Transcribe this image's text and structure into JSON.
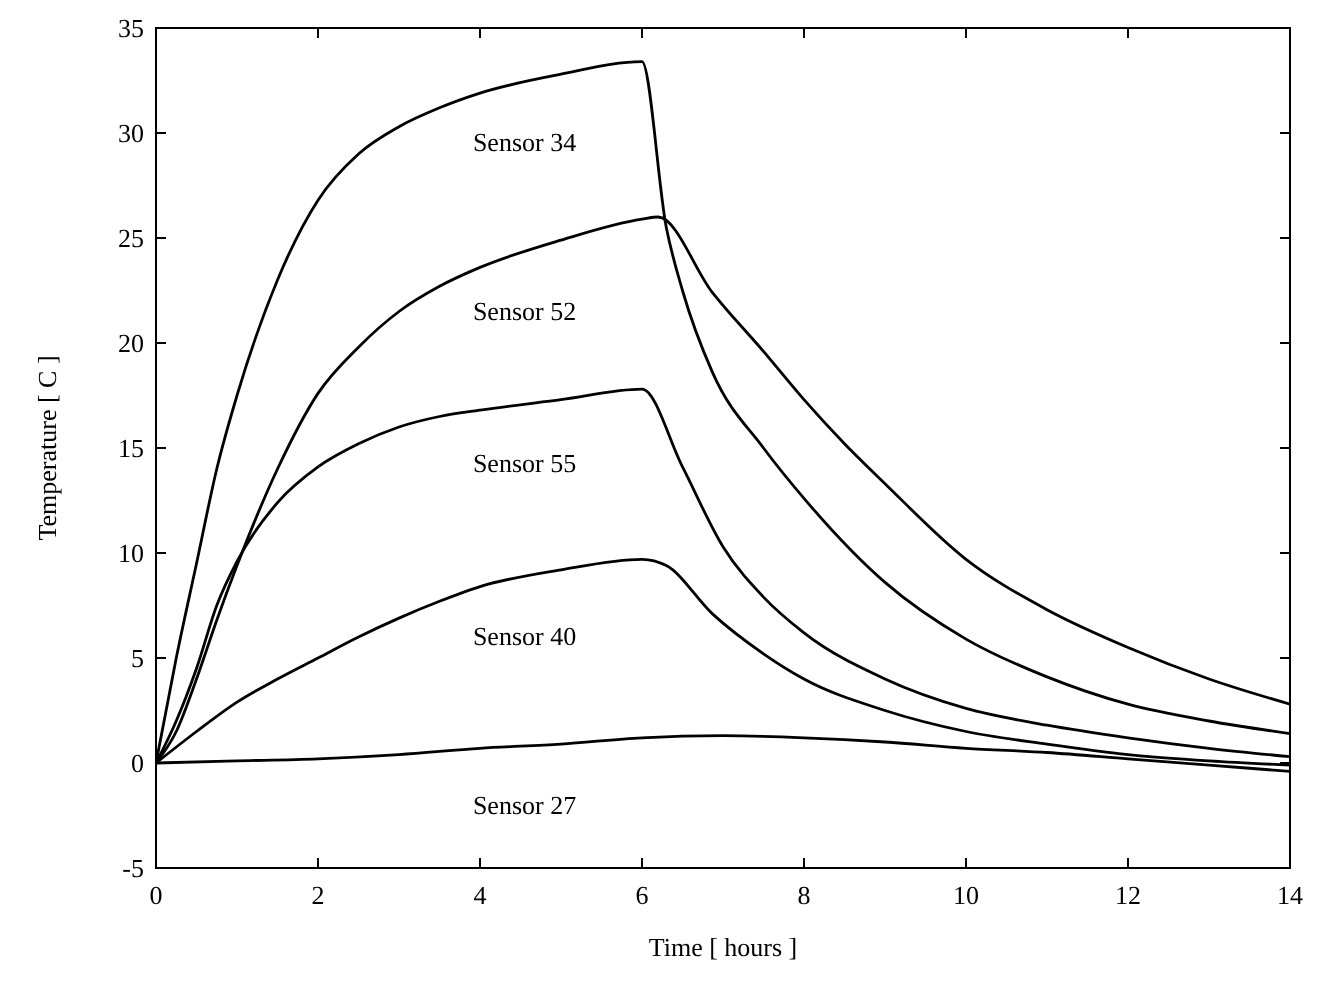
{
  "chart_data": {
    "type": "line",
    "xlabel": "Time [ hours ]",
    "ylabel": "Temperature [ C ]",
    "xlim": [
      0,
      14
    ],
    "xticks": [
      0,
      2,
      4,
      6,
      8,
      10,
      12,
      14
    ],
    "ylim": [
      -5,
      35
    ],
    "yticks": [
      -5,
      0,
      5,
      10,
      15,
      20,
      25,
      30,
      35
    ],
    "marker": "none",
    "line_style": "solid",
    "series": [
      {
        "name": "Sensor 34",
        "color": "#000000",
        "x": [
          0,
          0.25,
          0.5,
          0.75,
          1,
          1.5,
          2,
          2.5,
          3,
          3.5,
          4,
          5,
          6,
          6.3,
          6.5,
          6.87,
          7.5,
          8,
          9,
          10,
          11,
          12,
          13,
          14
        ],
        "values": [
          0,
          5,
          9.5,
          14,
          17.5,
          23,
          26.8,
          29,
          30.3,
          31.2,
          31.9,
          32.8,
          33.4,
          25.5,
          22.5,
          18.6,
          15,
          12.6,
          8.6,
          5.9,
          4.1,
          2.8,
          2,
          1.4
        ]
      },
      {
        "name": "Sensor 52",
        "color": "#000000",
        "x": [
          0,
          0.25,
          0.5,
          0.75,
          1,
          1.5,
          2,
          2.5,
          3,
          3.5,
          4,
          5,
          6,
          6.2,
          6.87,
          7.5,
          8,
          8.5,
          9,
          10,
          11,
          12,
          13,
          14
        ],
        "values": [
          0,
          1.5,
          4,
          6.8,
          9.4,
          14,
          17.6,
          19.8,
          21.5,
          22.7,
          23.6,
          24.9,
          25.9,
          26,
          22.4,
          19.6,
          17.3,
          15.2,
          13.3,
          9.7,
          7.3,
          5.5,
          4,
          2.8
        ]
      },
      {
        "name": "Sensor 55",
        "color": "#000000",
        "x": [
          0,
          0.25,
          0.5,
          0.75,
          1,
          1.5,
          2,
          2.5,
          3,
          3.5,
          4,
          5,
          6,
          6.5,
          7,
          7.5,
          8,
          9,
          10,
          11,
          12,
          13,
          14
        ],
        "values": [
          0,
          2,
          4.5,
          7.5,
          9.6,
          12.4,
          14.1,
          15.2,
          16,
          16.5,
          16.8,
          17.3,
          17.8,
          14.1,
          10.3,
          7.9,
          6.2,
          4,
          2.6,
          1.8,
          1.2,
          0.7,
          0.3
        ]
      },
      {
        "name": "Sensor 40",
        "color": "#000000",
        "x": [
          0,
          0.5,
          1,
          1.5,
          2,
          2.5,
          3,
          3.5,
          4,
          5,
          6,
          6.3,
          6.87,
          7.5,
          8,
          9,
          10,
          11,
          12,
          13,
          14
        ],
        "values": [
          0,
          1.5,
          2.9,
          4,
          5,
          6,
          6.9,
          7.7,
          8.4,
          9.2,
          9.7,
          9.4,
          7.1,
          5.2,
          4,
          2.5,
          1.5,
          0.9,
          0.4,
          0.1,
          -0.1
        ]
      },
      {
        "name": "Sensor 27",
        "color": "#000000",
        "x": [
          0,
          1,
          2,
          3,
          4,
          5,
          6,
          7,
          8,
          9,
          10,
          11,
          12,
          13,
          14
        ],
        "values": [
          0,
          0.1,
          0.2,
          0.4,
          0.7,
          0.9,
          1.2,
          1.3,
          1.2,
          1,
          0.7,
          0.5,
          0.2,
          -0.1,
          -0.4
        ]
      }
    ]
  }
}
